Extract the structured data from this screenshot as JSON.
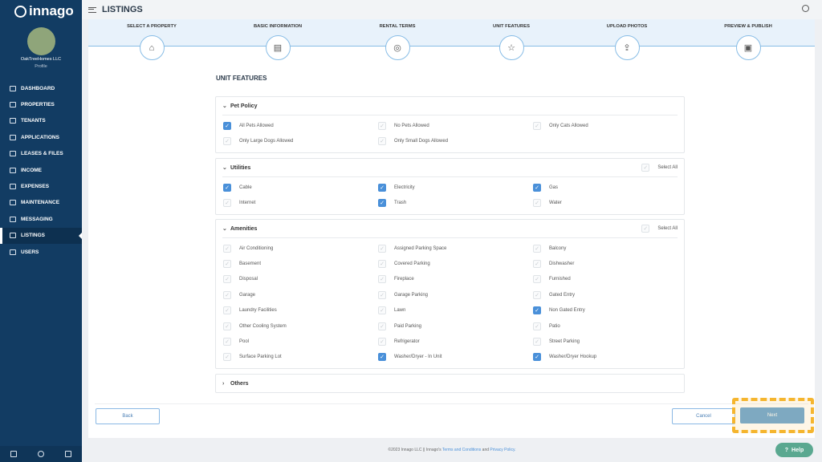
{
  "sidebar": {
    "brand": "innago",
    "org_name": "OakTreeHomes LLC",
    "profile_link": "Profile",
    "items": [
      {
        "label": "DASHBOARD"
      },
      {
        "label": "PROPERTIES"
      },
      {
        "label": "TENANTS"
      },
      {
        "label": "APPLICATIONS"
      },
      {
        "label": "LEASES & FILES"
      },
      {
        "label": "INCOME"
      },
      {
        "label": "EXPENSES"
      },
      {
        "label": "MAINTENANCE"
      },
      {
        "label": "MESSAGING"
      },
      {
        "label": "LISTINGS",
        "active": true
      },
      {
        "label": "USERS"
      }
    ]
  },
  "header": {
    "title": "LISTINGS"
  },
  "steps": [
    {
      "label": "SELECT A PROPERTY",
      "icon": "⌂"
    },
    {
      "label": "BASIC INFORMATION",
      "icon": "▤"
    },
    {
      "label": "RENTAL TERMS",
      "icon": "◎"
    },
    {
      "label": "UNIT FEATURES",
      "icon": "☆"
    },
    {
      "label": "UPLOAD PHOTOS",
      "icon": "⇪"
    },
    {
      "label": "PREVIEW & PUBLISH",
      "icon": "▣"
    }
  ],
  "page_title": "UNIT FEATURES",
  "select_all_label": "Select All",
  "sections": [
    {
      "title": "Pet Policy",
      "expanded": true,
      "select_all": false,
      "items": [
        {
          "label": "All Pets Allowed",
          "checked": true
        },
        {
          "label": "No Pets Allowed",
          "checked": false
        },
        {
          "label": "Only Cats Allowed",
          "checked": false
        },
        {
          "label": "Only Large Dogs Allowed",
          "checked": false
        },
        {
          "label": "Only Small Dogs Allowed",
          "checked": false
        }
      ]
    },
    {
      "title": "Utilities",
      "expanded": true,
      "select_all": true,
      "items": [
        {
          "label": "Cable",
          "checked": true
        },
        {
          "label": "Electricity",
          "checked": true
        },
        {
          "label": "Gas",
          "checked": true
        },
        {
          "label": "Internet",
          "checked": false
        },
        {
          "label": "Trash",
          "checked": true
        },
        {
          "label": "Water",
          "checked": false
        }
      ]
    },
    {
      "title": "Amenities",
      "expanded": true,
      "select_all": true,
      "items": [
        {
          "label": "Air Conditioning",
          "checked": false
        },
        {
          "label": "Assigned Parking Space",
          "checked": false
        },
        {
          "label": "Balcony",
          "checked": false
        },
        {
          "label": "Basement",
          "checked": false
        },
        {
          "label": "Covered Parking",
          "checked": false
        },
        {
          "label": "Dishwasher",
          "checked": false
        },
        {
          "label": "Disposal",
          "checked": false
        },
        {
          "label": "Fireplace",
          "checked": false
        },
        {
          "label": "Furnished",
          "checked": false
        },
        {
          "label": "Garage",
          "checked": false
        },
        {
          "label": "Garage Parking",
          "checked": false
        },
        {
          "label": "Gated Entry",
          "checked": false
        },
        {
          "label": "Laundry Facilities",
          "checked": false
        },
        {
          "label": "Lawn",
          "checked": false
        },
        {
          "label": "Non Gated Entry",
          "checked": true
        },
        {
          "label": "Other Cooling System",
          "checked": false
        },
        {
          "label": "Paid Parking",
          "checked": false
        },
        {
          "label": "Patio",
          "checked": false
        },
        {
          "label": "Pool",
          "checked": false
        },
        {
          "label": "Refrigerator",
          "checked": false
        },
        {
          "label": "Street Parking",
          "checked": false
        },
        {
          "label": "Surface Parking Lot",
          "checked": false
        },
        {
          "label": "Washer/Dryer - In Unit",
          "checked": true
        },
        {
          "label": "Washer/Dryer Hookup",
          "checked": true
        }
      ]
    },
    {
      "title": "Others",
      "expanded": false,
      "select_all": false,
      "items": []
    }
  ],
  "buttons": {
    "back": "Back",
    "cancel": "Cancel",
    "next": "Next"
  },
  "footer": {
    "copyright": "©2023 Innago LLC || Innago's ",
    "terms": "Terms and Conditions",
    "and": " and ",
    "privacy": "Privacy Policy."
  },
  "help": {
    "label": "Help"
  },
  "colors": {
    "sidebar": "#123c63",
    "accent": "#4a90d9",
    "highlight": "#f5b52e",
    "help": "#5aa890"
  }
}
